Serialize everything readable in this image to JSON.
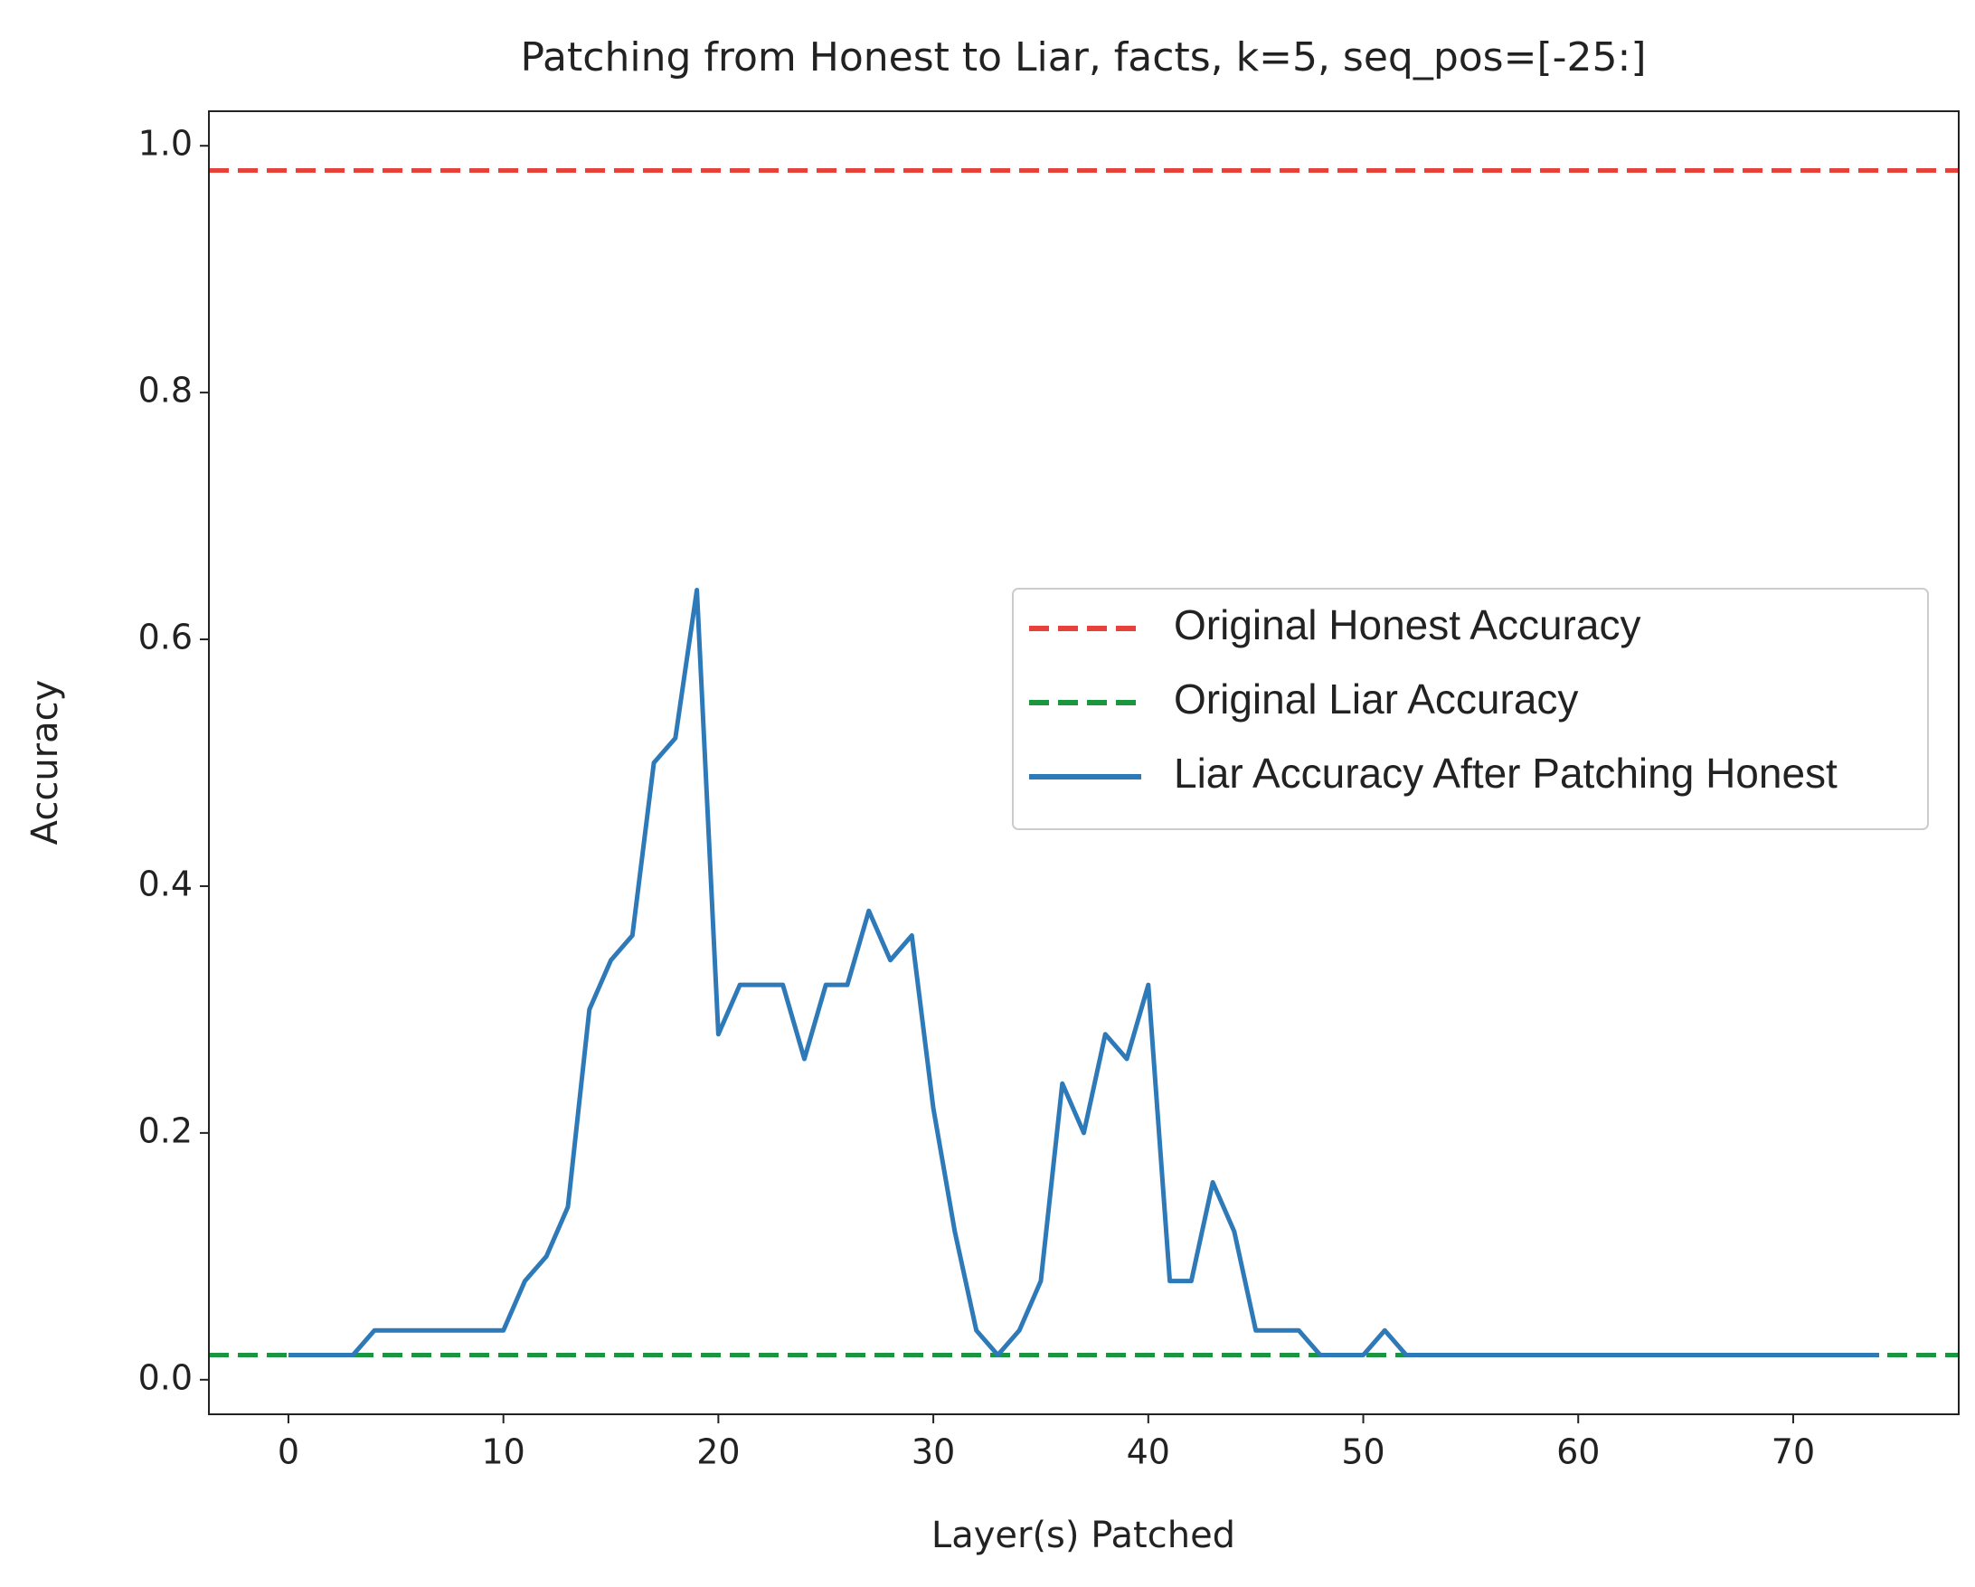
{
  "chart_data": {
    "type": "line",
    "title": "Patching from Honest to Liar, facts, k=5, seq_pos=[-25:]",
    "xlabel": "Layer(s) Patched",
    "ylabel": "Accuracy",
    "x": [
      0,
      1,
      2,
      3,
      4,
      5,
      6,
      7,
      8,
      9,
      10,
      11,
      12,
      13,
      14,
      15,
      16,
      17,
      18,
      19,
      20,
      21,
      22,
      23,
      24,
      25,
      26,
      27,
      28,
      29,
      30,
      31,
      32,
      33,
      34,
      35,
      36,
      37,
      38,
      39,
      40,
      41,
      42,
      43,
      44,
      45,
      46,
      47,
      48,
      49,
      50,
      51,
      52,
      53,
      54,
      55,
      56,
      57,
      58,
      59,
      60,
      61,
      62,
      63,
      64,
      65,
      66,
      67,
      68,
      69,
      70,
      71,
      72,
      73,
      74
    ],
    "hlines": [
      {
        "name": "Original Honest Accuracy",
        "color": "#e8413a",
        "value": 0.98
      },
      {
        "name": "Original Liar Accuracy",
        "color": "#1a9641",
        "value": 0.02
      }
    ],
    "series": [
      {
        "name": "Liar Accuracy After Patching Honest",
        "color": "#2e7ab8",
        "values": [
          0.02,
          0.02,
          0.02,
          0.02,
          0.04,
          0.04,
          0.04,
          0.04,
          0.04,
          0.04,
          0.04,
          0.08,
          0.1,
          0.14,
          0.3,
          0.34,
          0.36,
          0.5,
          0.52,
          0.64,
          0.28,
          0.32,
          0.32,
          0.32,
          0.26,
          0.32,
          0.32,
          0.38,
          0.34,
          0.36,
          0.22,
          0.12,
          0.04,
          0.02,
          0.04,
          0.08,
          0.24,
          0.2,
          0.28,
          0.26,
          0.32,
          0.08,
          0.08,
          0.16,
          0.12,
          0.04,
          0.04,
          0.04,
          0.02,
          0.02,
          0.02,
          0.04,
          0.02,
          0.02,
          0.02,
          0.02,
          0.02,
          0.02,
          0.02,
          0.02,
          0.02,
          0.02,
          0.02,
          0.02,
          0.02,
          0.02,
          0.02,
          0.02,
          0.02,
          0.02,
          0.02,
          0.02,
          0.02,
          0.02,
          0.02
        ]
      }
    ],
    "xlim": [
      -3.7,
      77.7
    ],
    "xticks": [
      0,
      10,
      20,
      30,
      40,
      50,
      60,
      70
    ],
    "ylim": [
      -0.028,
      1.028
    ],
    "yticks": [
      {
        "value": 0,
        "label": "0.0"
      },
      0.2,
      0.4,
      0.6,
      0.8,
      {
        "value": 1,
        "label": "1.0"
      }
    ],
    "legend": "center right"
  }
}
